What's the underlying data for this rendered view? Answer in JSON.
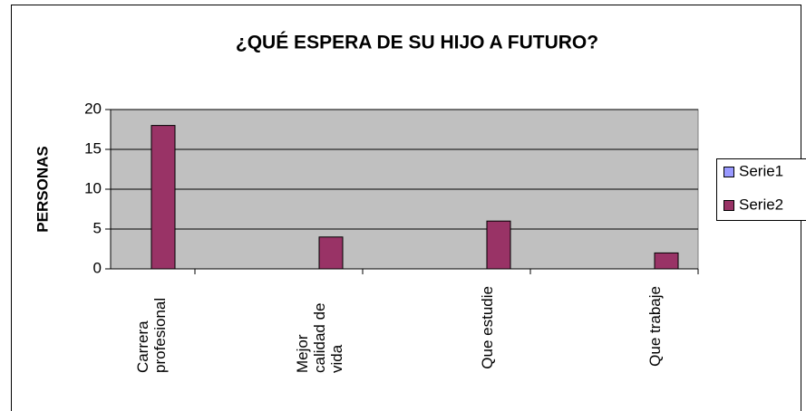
{
  "chart_data": {
    "type": "bar",
    "title": "¿QUÉ ESPERA DE SU HIJO A FUTURO?",
    "y_label": "PERSONAS",
    "categories": [
      "Carrera profesional",
      "Mejor calidad de vida",
      "Que estudie",
      "Que trabaje"
    ],
    "series": [
      {
        "name": "Serie1",
        "color": "#9999ff",
        "values": [
          0,
          0,
          0,
          0
        ]
      },
      {
        "name": "Serie2",
        "color": "#993366",
        "values": [
          18,
          4,
          6,
          2
        ]
      }
    ],
    "ylim": [
      0,
      20
    ],
    "yticks": [
      0,
      5,
      10,
      15,
      20
    ],
    "grid": true,
    "legend": "right",
    "plot_background": "#c0c0c0"
  }
}
